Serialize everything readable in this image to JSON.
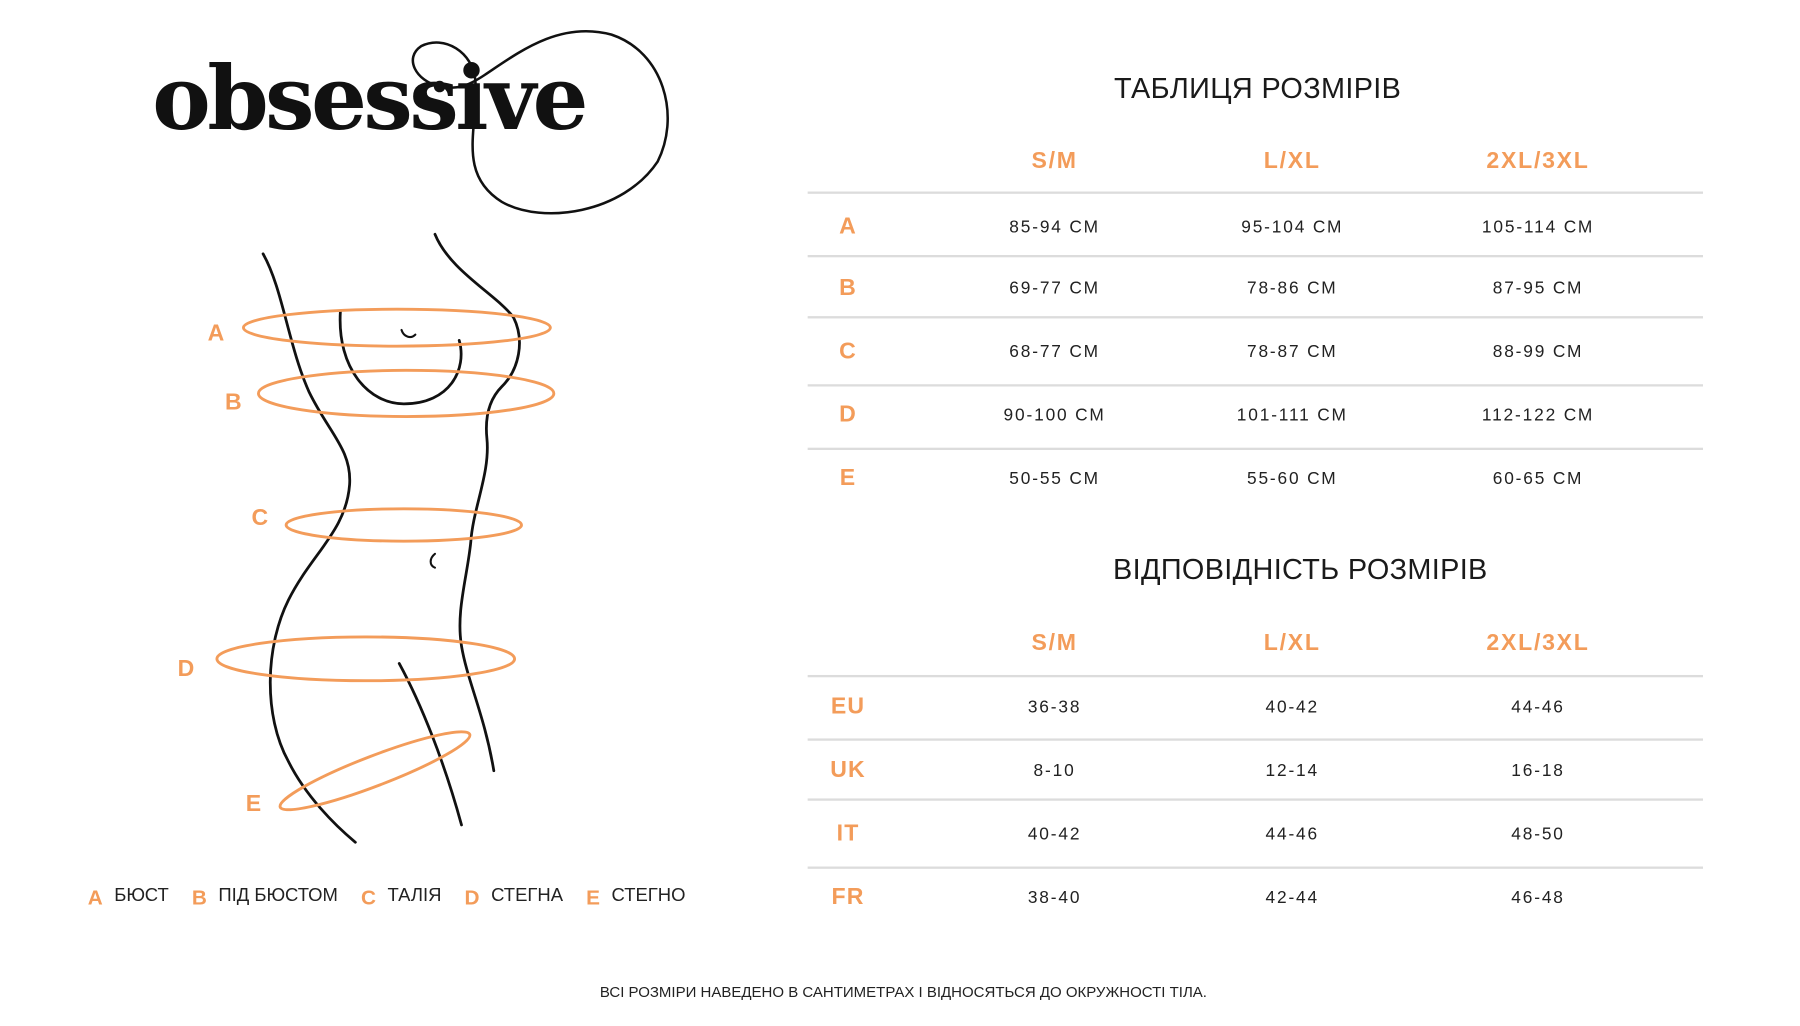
{
  "brand": {
    "logo": "obsessive"
  },
  "accent_color": "#f39c5a",
  "figure": {
    "labels": [
      "A",
      "B",
      "C",
      "D",
      "E"
    ]
  },
  "legend": [
    {
      "key": "A",
      "label": "БЮСТ"
    },
    {
      "key": "B",
      "label": "ПІД БЮСТОМ"
    },
    {
      "key": "C",
      "label": "ТАЛІЯ"
    },
    {
      "key": "D",
      "label": "СТЕГНА"
    },
    {
      "key": "E",
      "label": "СТЕГНО"
    }
  ],
  "size_table": {
    "title": "ТАБЛИЦЯ РОЗМІРІВ",
    "columns": [
      "S/M",
      "L/XL",
      "2XL/3XL"
    ],
    "rows": [
      {
        "label": "A",
        "values": [
          "85-94 СМ",
          "95-104 СМ",
          "105-114 СМ"
        ]
      },
      {
        "label": "B",
        "values": [
          "69-77 СМ",
          "78-86 СМ",
          "87-95 СМ"
        ]
      },
      {
        "label": "C",
        "values": [
          "68-77 СМ",
          "78-87 СМ",
          "88-99 СМ"
        ]
      },
      {
        "label": "D",
        "values": [
          "90-100 СМ",
          "101-111 СМ",
          "112-122 СМ"
        ]
      },
      {
        "label": "E",
        "values": [
          "50-55 СМ",
          "55-60 СМ",
          "60-65 СМ"
        ]
      }
    ]
  },
  "conversion_table": {
    "title": "ВІДПОВІДНІСТЬ РОЗМІРІВ",
    "columns": [
      "S/M",
      "L/XL",
      "2XL/3XL"
    ],
    "rows": [
      {
        "label": "EU",
        "values": [
          "36-38",
          "40-42",
          "44-46"
        ]
      },
      {
        "label": "UK",
        "values": [
          "8-10",
          "12-14",
          "16-18"
        ]
      },
      {
        "label": "IT",
        "values": [
          "40-42",
          "44-46",
          "48-50"
        ]
      },
      {
        "label": "FR",
        "values": [
          "38-40",
          "42-44",
          "46-48"
        ]
      }
    ]
  },
  "footer": "ВСІ РОЗМІРИ НАВЕДЕНО В САНТИМЕТРАХ І ВІДНОСЯТЬСЯ ДО ОКРУЖНОСТІ ТІЛА."
}
